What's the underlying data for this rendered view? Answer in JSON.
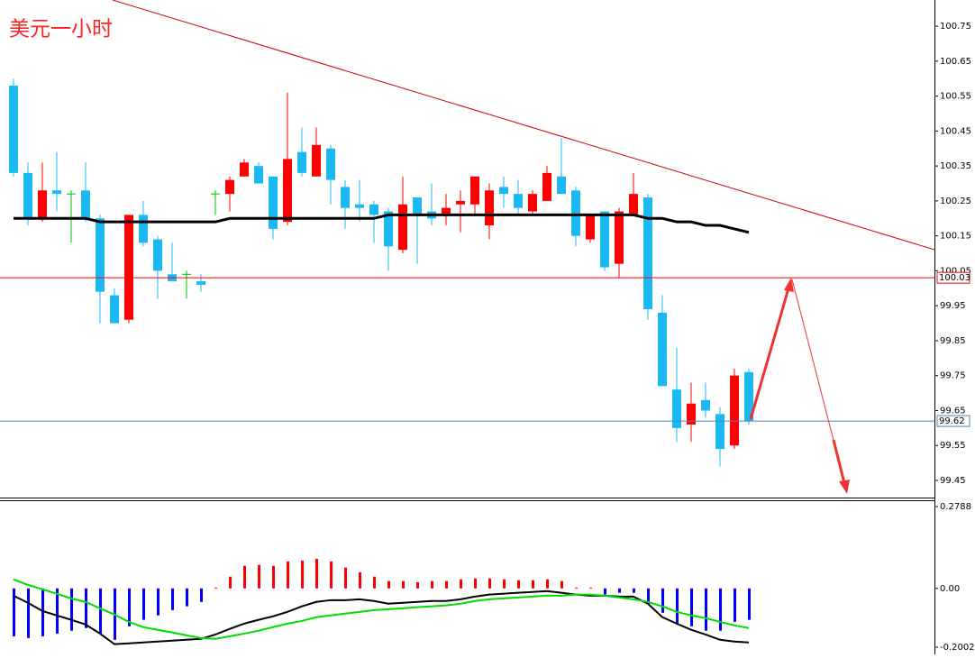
{
  "chart_data": [
    {
      "type": "candlestick",
      "title": "美元一小时",
      "categories": [
        null,
        null,
        null,
        null,
        null,
        null,
        null,
        null,
        null,
        null,
        null,
        null,
        null,
        null,
        null,
        null,
        null,
        null,
        null,
        null,
        null,
        null,
        null,
        null,
        null,
        null,
        null,
        null,
        null,
        null,
        null,
        null,
        null,
        null,
        null,
        null,
        null,
        null,
        null,
        null,
        null,
        null,
        null,
        null,
        null,
        null,
        null,
        null,
        null,
        null,
        null,
        null
      ],
      "open": [
        100.58,
        100.33,
        100.2,
        100.28,
        100.27,
        100.28,
        100.2,
        99.98,
        99.91,
        100.21,
        100.14,
        100.04,
        100.04,
        100.02,
        100.27,
        100.27,
        100.32,
        100.35,
        100.32,
        100.19,
        100.39,
        100.32,
        100.4,
        100.29,
        100.24,
        100.24,
        100.22,
        100.11,
        100.26,
        100.22,
        100.21,
        100.24,
        100.24,
        100.18,
        100.29,
        100.27,
        100.22,
        100.25,
        100.32,
        100.28,
        100.14,
        100.22,
        100.07,
        100.21,
        100.26,
        99.93,
        99.71,
        99.61,
        99.68,
        99.64,
        99.55,
        99.76
      ],
      "high": [
        100.6,
        100.36,
        100.36,
        100.39,
        100.28,
        100.36,
        100.21,
        100.0,
        100.21,
        100.25,
        100.15,
        100.13,
        100.05,
        100.04,
        100.28,
        100.32,
        100.37,
        100.36,
        100.32,
        100.56,
        100.46,
        100.46,
        100.41,
        100.31,
        100.31,
        100.25,
        100.23,
        100.32,
        100.26,
        100.3,
        100.27,
        100.28,
        100.32,
        100.3,
        100.32,
        100.31,
        100.28,
        100.35,
        100.43,
        100.29,
        100.21,
        100.22,
        100.23,
        100.33,
        100.27,
        99.98,
        99.83,
        99.73,
        99.73,
        99.66,
        99.77,
        99.77
      ],
      "low": [
        100.32,
        100.18,
        100.19,
        100.22,
        100.13,
        100.19,
        99.9,
        99.9,
        99.9,
        100.12,
        99.97,
        100.02,
        99.97,
        99.99,
        100.21,
        100.22,
        100.32,
        100.3,
        100.14,
        100.18,
        100.32,
        100.32,
        100.24,
        100.17,
        100.19,
        100.13,
        100.05,
        100.1,
        100.07,
        100.18,
        100.18,
        100.16,
        100.21,
        100.14,
        100.23,
        100.21,
        100.21,
        100.25,
        100.27,
        100.12,
        100.13,
        100.05,
        100.03,
        100.21,
        99.91,
        99.72,
        99.56,
        99.56,
        99.63,
        99.49,
        99.54,
        99.61
      ],
      "close": [
        100.33,
        100.2,
        100.28,
        100.27,
        100.27,
        100.2,
        99.99,
        99.9,
        100.21,
        100.13,
        100.05,
        100.02,
        100.04,
        100.01,
        100.27,
        100.31,
        100.36,
        100.3,
        100.17,
        100.37,
        100.33,
        100.41,
        100.31,
        100.23,
        100.23,
        100.21,
        100.12,
        100.24,
        100.21,
        100.2,
        100.23,
        100.25,
        100.32,
        100.28,
        100.27,
        100.23,
        100.27,
        100.33,
        100.27,
        100.15,
        100.21,
        100.06,
        100.22,
        100.27,
        99.94,
        99.72,
        99.6,
        99.67,
        99.65,
        99.54,
        99.75,
        99.62
      ],
      "up_color": "#ff0000",
      "down_color": "#1cb8f2",
      "doji_color": "#00c000",
      "ma": {
        "color": "#000000",
        "values": [
          100.2,
          100.2,
          100.2,
          100.2,
          100.2,
          100.2,
          100.19,
          100.19,
          100.19,
          100.19,
          100.19,
          100.19,
          100.19,
          100.19,
          100.19,
          100.2,
          100.2,
          100.2,
          100.2,
          100.2,
          100.2,
          100.2,
          100.2,
          100.2,
          100.2,
          100.2,
          100.21,
          100.21,
          100.21,
          100.21,
          100.21,
          100.21,
          100.21,
          100.21,
          100.21,
          100.21,
          100.21,
          100.21,
          100.21,
          100.21,
          100.21,
          100.21,
          100.21,
          100.21,
          100.2,
          100.2,
          100.19,
          100.19,
          100.18,
          100.18,
          100.17,
          100.16
        ]
      },
      "hlines": [
        {
          "value": 100.03,
          "color": "#ff0000"
        },
        {
          "value": 99.62,
          "color": "#4f81bd"
        }
      ],
      "ylim": [
        99.401,
        100.825
      ],
      "yticks": [
        99.45,
        99.55,
        99.65,
        99.75,
        99.85,
        99.95,
        100.05,
        100.15,
        100.25,
        100.35,
        100.45,
        100.55,
        100.65,
        100.75
      ]
    },
    {
      "type": "macd",
      "categories": [
        null,
        null,
        null,
        null,
        null,
        null,
        null,
        null,
        null,
        null,
        null,
        null,
        null,
        null,
        null,
        null,
        null,
        null,
        null,
        null,
        null,
        null,
        null,
        null,
        null,
        null,
        null,
        null,
        null,
        null,
        null,
        null,
        null,
        null,
        null,
        null,
        null,
        null,
        null,
        null,
        null,
        null,
        null,
        null,
        null,
        null,
        null,
        null,
        null,
        null,
        null,
        null
      ],
      "hist": {
        "up_color": "#ff0000",
        "down_color": "#0000ff",
        "values": [
          -0.163,
          -0.169,
          -0.163,
          -0.154,
          -0.144,
          -0.135,
          -0.154,
          -0.175,
          -0.129,
          -0.107,
          -0.092,
          -0.074,
          -0.061,
          -0.046,
          0.003,
          0.04,
          0.077,
          0.08,
          0.077,
          0.092,
          0.095,
          0.101,
          0.092,
          0.071,
          0.055,
          0.04,
          0.025,
          0.025,
          0.021,
          0.025,
          0.025,
          0.031,
          0.034,
          0.034,
          0.031,
          0.028,
          0.028,
          0.031,
          0.025,
          0.003,
          0.003,
          -0.021,
          -0.015,
          -0.015,
          -0.052,
          -0.083,
          -0.123,
          -0.129,
          -0.144,
          -0.144,
          -0.114,
          -0.107
        ]
      },
      "lines": [
        {
          "color": "#000000",
          "values": [
            -0.025,
            -0.049,
            -0.077,
            -0.092,
            -0.107,
            -0.123,
            -0.154,
            -0.19,
            -0.187,
            -0.184,
            -0.181,
            -0.178,
            -0.175,
            -0.172,
            -0.157,
            -0.138,
            -0.12,
            -0.107,
            -0.095,
            -0.08,
            -0.061,
            -0.046,
            -0.04,
            -0.04,
            -0.037,
            -0.043,
            -0.052,
            -0.049,
            -0.046,
            -0.043,
            -0.043,
            -0.037,
            -0.028,
            -0.021,
            -0.018,
            -0.015,
            -0.012,
            -0.009,
            -0.015,
            -0.021,
            -0.025,
            -0.025,
            -0.028,
            -0.028,
            -0.052,
            -0.098,
            -0.12,
            -0.141,
            -0.157,
            -0.175,
            -0.181,
            -0.184
          ]
        },
        {
          "color": "#00dd00",
          "values": [
            0.031,
            0.012,
            -0.003,
            -0.018,
            -0.034,
            -0.046,
            -0.068,
            -0.089,
            -0.114,
            -0.132,
            -0.141,
            -0.15,
            -0.16,
            -0.169,
            -0.172,
            -0.163,
            -0.154,
            -0.144,
            -0.132,
            -0.12,
            -0.111,
            -0.098,
            -0.092,
            -0.086,
            -0.08,
            -0.074,
            -0.071,
            -0.068,
            -0.064,
            -0.061,
            -0.058,
            -0.052,
            -0.043,
            -0.037,
            -0.034,
            -0.031,
            -0.028,
            -0.025,
            -0.025,
            -0.021,
            -0.021,
            -0.025,
            -0.031,
            -0.037,
            -0.046,
            -0.061,
            -0.08,
            -0.092,
            -0.101,
            -0.114,
            -0.126,
            -0.135
          ]
        }
      ],
      "ylim": [
        -0.2248,
        0.2972
      ],
      "yticks": [
        -0.2002,
        {
          "value": 0,
          "label": "0.00"
        },
        0.2788
      ]
    }
  ]
}
